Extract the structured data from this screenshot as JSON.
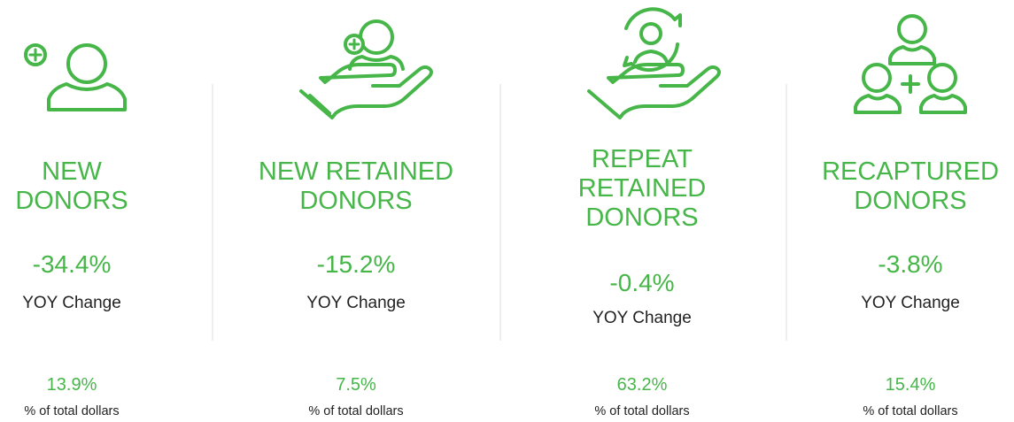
{
  "cards": [
    {
      "title_lines": [
        "NEW",
        "DONORS"
      ],
      "change": "-34.4%",
      "change_label": "YOY Change",
      "share": "13.9%",
      "share_label": "% of total dollars"
    },
    {
      "title_lines": [
        "NEW RETAINED",
        "DONORS"
      ],
      "change": "-15.2%",
      "change_label": "YOY Change",
      "share": "7.5%",
      "share_label": "% of total dollars"
    },
    {
      "title_lines": [
        "REPEAT",
        "RETAINED",
        "DONORS"
      ],
      "change": "-0.4%",
      "change_label": "YOY Change",
      "share": "63.2%",
      "share_label": "% of total dollars"
    },
    {
      "title_lines": [
        "RECAPTURED",
        "DONORS"
      ],
      "change": "-3.8%",
      "change_label": "YOY Change",
      "share": "15.4%",
      "share_label": "% of total dollars"
    }
  ]
}
